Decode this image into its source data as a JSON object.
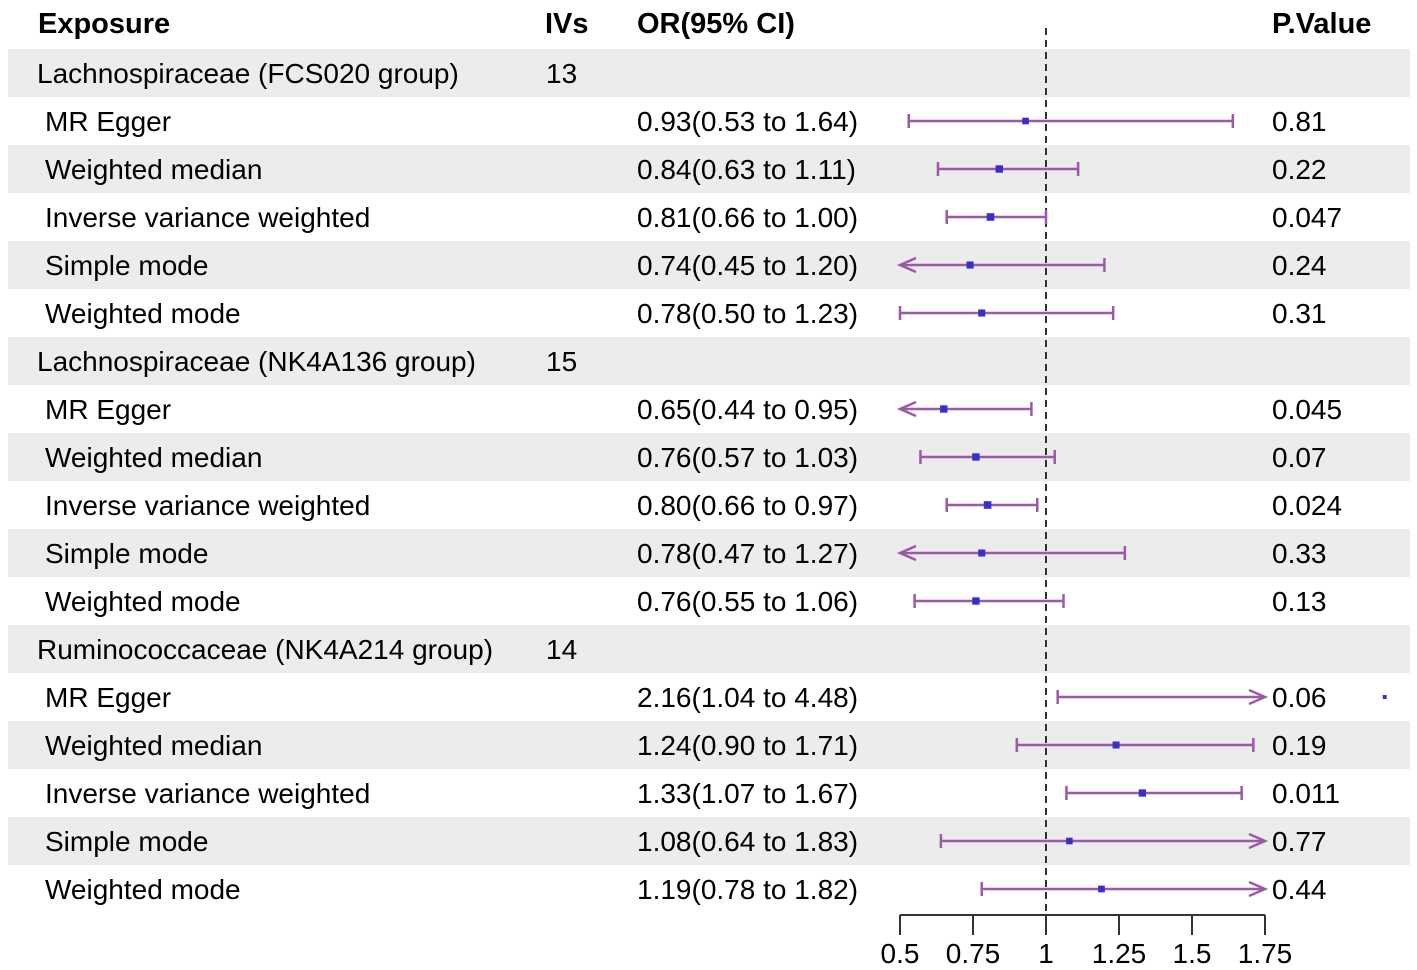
{
  "header": {
    "exposure": "Exposure",
    "ivs": "IVs",
    "or": "OR(95% CI)",
    "pvalue": "P.Value"
  },
  "chart_data": {
    "type": "forest",
    "reference_line": 1,
    "xlim": [
      0.5,
      1.75
    ],
    "x_ticks": [
      "0.5",
      "0.75",
      "1",
      "1.25",
      "1.5",
      "1.75"
    ],
    "rows": [
      {
        "kind": "group",
        "label": "Lachnospiraceae (FCS020 group)",
        "ivs": "13"
      },
      {
        "kind": "method",
        "label": "MR Egger",
        "or_text": "0.93(0.53 to 1.64)",
        "or": 0.93,
        "lo": 0.53,
        "hi": 1.64,
        "p": "0.81"
      },
      {
        "kind": "method",
        "label": "Weighted median",
        "or_text": "0.84(0.63 to 1.11)",
        "or": 0.84,
        "lo": 0.63,
        "hi": 1.11,
        "p": "0.22"
      },
      {
        "kind": "method",
        "label": "Inverse variance weighted",
        "or_text": "0.81(0.66 to 1.00)",
        "or": 0.81,
        "lo": 0.66,
        "hi": 1.0,
        "p": "0.047"
      },
      {
        "kind": "method",
        "label": "Simple mode",
        "or_text": "0.74(0.45 to 1.20)",
        "or": 0.74,
        "lo": 0.45,
        "hi": 1.2,
        "p": "0.24"
      },
      {
        "kind": "method",
        "label": "Weighted mode",
        "or_text": "0.78(0.50 to 1.23)",
        "or": 0.78,
        "lo": 0.5,
        "hi": 1.23,
        "p": "0.31"
      },
      {
        "kind": "group",
        "label": "Lachnospiraceae (NK4A136 group)",
        "ivs": "15"
      },
      {
        "kind": "method",
        "label": "MR Egger",
        "or_text": "0.65(0.44 to 0.95)",
        "or": 0.65,
        "lo": 0.44,
        "hi": 0.95,
        "p": "0.045"
      },
      {
        "kind": "method",
        "label": "Weighted median",
        "or_text": "0.76(0.57 to 1.03)",
        "or": 0.76,
        "lo": 0.57,
        "hi": 1.03,
        "p": "0.07"
      },
      {
        "kind": "method",
        "label": "Inverse variance weighted",
        "or_text": "0.80(0.66 to 0.97)",
        "or": 0.8,
        "lo": 0.66,
        "hi": 0.97,
        "p": "0.024"
      },
      {
        "kind": "method",
        "label": "Simple mode",
        "or_text": "0.78(0.47 to 1.27)",
        "or": 0.78,
        "lo": 0.47,
        "hi": 1.27,
        "p": "0.33"
      },
      {
        "kind": "method",
        "label": "Weighted mode",
        "or_text": "0.76(0.55 to 1.06)",
        "or": 0.76,
        "lo": 0.55,
        "hi": 1.06,
        "p": "0.13"
      },
      {
        "kind": "group",
        "label": "Ruminococcaceae (NK4A214 group)",
        "ivs": "14"
      },
      {
        "kind": "method",
        "label": "MR Egger",
        "or_text": "2.16(1.04 to 4.48)",
        "or": 2.16,
        "lo": 1.04,
        "hi": 4.48,
        "p": "0.06"
      },
      {
        "kind": "method",
        "label": "Weighted median",
        "or_text": "1.24(0.90 to 1.71)",
        "or": 1.24,
        "lo": 0.9,
        "hi": 1.71,
        "p": "0.19"
      },
      {
        "kind": "method",
        "label": "Inverse variance weighted",
        "or_text": "1.33(1.07 to 1.67)",
        "or": 1.33,
        "lo": 1.07,
        "hi": 1.67,
        "p": "0.011"
      },
      {
        "kind": "method",
        "label": "Simple mode",
        "or_text": "1.08(0.64 to 1.83)",
        "or": 1.08,
        "lo": 0.64,
        "hi": 1.83,
        "p": "0.77"
      },
      {
        "kind": "method",
        "label": "Weighted mode",
        "or_text": "1.19(0.78 to 1.82)",
        "or": 1.19,
        "lo": 0.78,
        "hi": 1.82,
        "p": "0.44"
      }
    ]
  },
  "colors": {
    "band": "#ececec",
    "ci_line": "#9b59a6",
    "point": "#3b2fc9",
    "ref_line": "#333333",
    "axis": "#333333"
  }
}
